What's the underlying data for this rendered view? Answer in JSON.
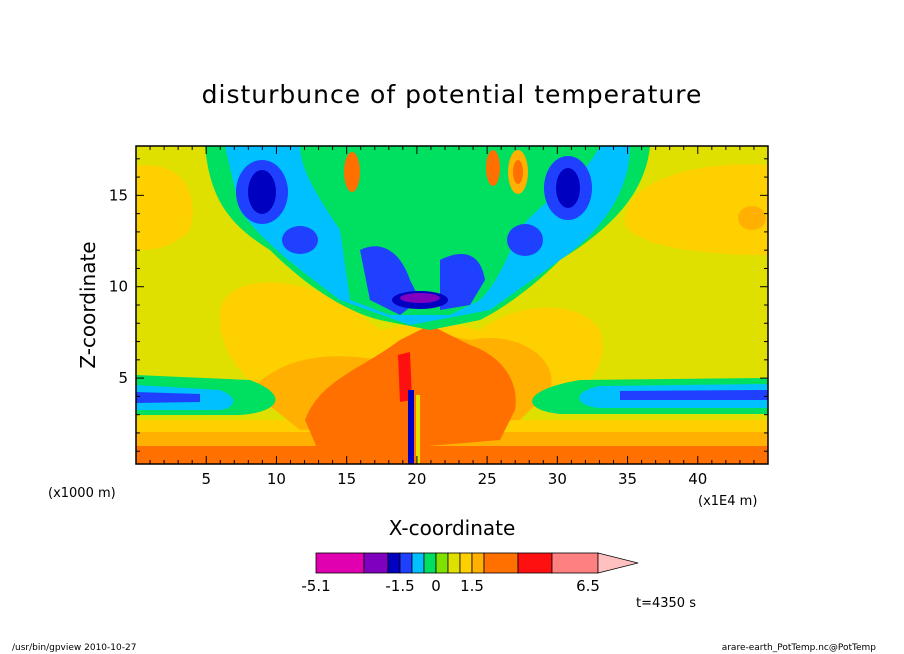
{
  "chart_data": {
    "type": "heatmap",
    "title": "disturbunce of potential temperature",
    "xlabel": "X-coordinate",
    "ylabel": "Z-coordinate",
    "x_unit_left": "(x1000 m)",
    "x_unit_right": "(x1E4 m)",
    "x_ticks": [
      5,
      10,
      15,
      20,
      25,
      30,
      35,
      40
    ],
    "y_ticks": [
      5,
      10,
      15
    ],
    "xlim": [
      0,
      45
    ],
    "ylim": [
      0.3,
      17.7
    ],
    "colorbar": {
      "colors": [
        "#e000b0",
        "#8000c0",
        "#0000c0",
        "#2040ff",
        "#00c0ff",
        "#00e060",
        "#80e000",
        "#e0e000",
        "#ffd000",
        "#ffb000",
        "#ff7000",
        "#ff1010",
        "#ff8080",
        "#ffc0c0"
      ],
      "tick_labels": [
        "-5.1",
        "-1.5",
        "0",
        "1.5",
        "6.5"
      ]
    },
    "time_label": "t=4350 s"
  },
  "footer": {
    "left": "/usr/bin/gpview  2010-10-27",
    "right": "arare-earth_PotTemp.nc@PotTemp"
  }
}
